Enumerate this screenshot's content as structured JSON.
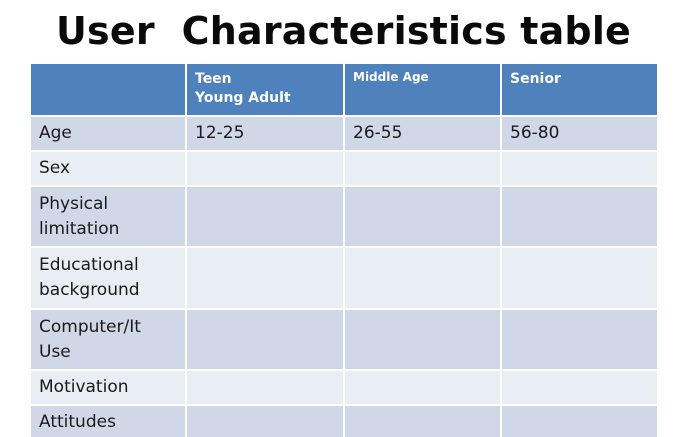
{
  "title": "User  Characteristics table",
  "header": {
    "col0": "",
    "col1_line1": "Teen",
    "col1_line2": "Young Adult",
    "col2": "Middle Age",
    "col3": "Senior"
  },
  "rows": [
    {
      "label_lines": [
        "Age"
      ],
      "values": [
        "12-25",
        "26-55",
        "56-80"
      ]
    },
    {
      "label_lines": [
        "Sex"
      ],
      "values": [
        "",
        "",
        ""
      ]
    },
    {
      "label_lines": [
        "Physical",
        "limitation"
      ],
      "values": [
        "",
        "",
        ""
      ]
    },
    {
      "label_lines": [
        "Educational",
        "background"
      ],
      "values": [
        "",
        "",
        ""
      ]
    },
    {
      "label_lines": [
        "Computer/It",
        "Use"
      ],
      "values": [
        "",
        "",
        ""
      ]
    },
    {
      "label_lines": [
        "Motivation"
      ],
      "values": [
        "",
        "",
        ""
      ]
    },
    {
      "label_lines": [
        "Attitudes"
      ],
      "values": [
        "",
        "",
        ""
      ]
    }
  ],
  "colors": {
    "header_bg": "#4f81bd",
    "row_odd_bg": "#d0d8e8",
    "row_even_bg": "#e9edf4"
  }
}
